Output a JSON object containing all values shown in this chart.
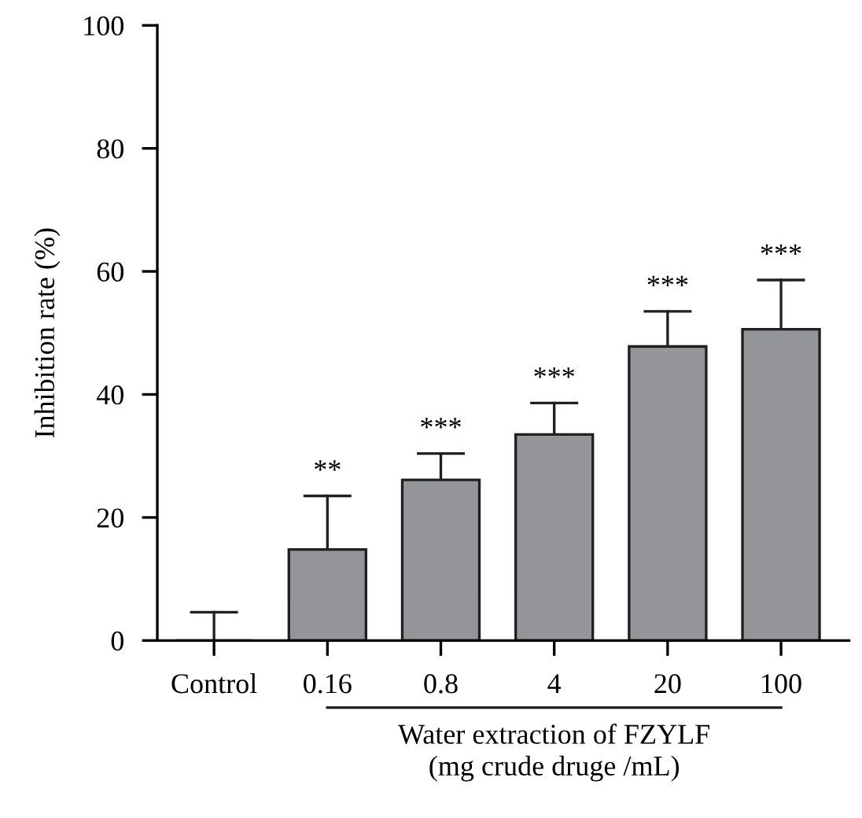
{
  "chart_data": {
    "type": "bar",
    "ylabel": "Inhibition rate (%)",
    "xlabel": "Water extraction of FZYLF\n(mg crude druge /mL)",
    "categories": [
      "Control",
      "0.16",
      "0.8",
      "4",
      "20",
      "100"
    ],
    "values": [
      0,
      14.8,
      26.1,
      33.5,
      47.8,
      50.6
    ],
    "errors": [
      [
        0,
        4.6
      ],
      [
        14.8,
        23.5
      ],
      [
        26.1,
        30.4
      ],
      [
        33.5,
        38.6
      ],
      [
        47.8,
        53.5
      ],
      [
        50.6,
        58.6
      ]
    ],
    "colors": [
      "#231f20",
      "#939598",
      "#939598",
      "#939598",
      "#939598",
      "#939598"
    ],
    "ylim": [
      0,
      100
    ],
    "yticks": [
      0,
      20,
      40,
      60,
      80,
      100
    ],
    "grid": false,
    "legend": false,
    "annotations": [
      {
        "text": "**",
        "x": "0.16",
        "y": 23.5
      },
      {
        "text": "***",
        "x": "0.8",
        "y": 30.4
      },
      {
        "text": "***",
        "x": "4",
        "y": 38.6
      },
      {
        "text": "***",
        "x": "20",
        "y": 53.5
      },
      {
        "text": "***",
        "x": "100",
        "y": 58.6
      }
    ]
  }
}
